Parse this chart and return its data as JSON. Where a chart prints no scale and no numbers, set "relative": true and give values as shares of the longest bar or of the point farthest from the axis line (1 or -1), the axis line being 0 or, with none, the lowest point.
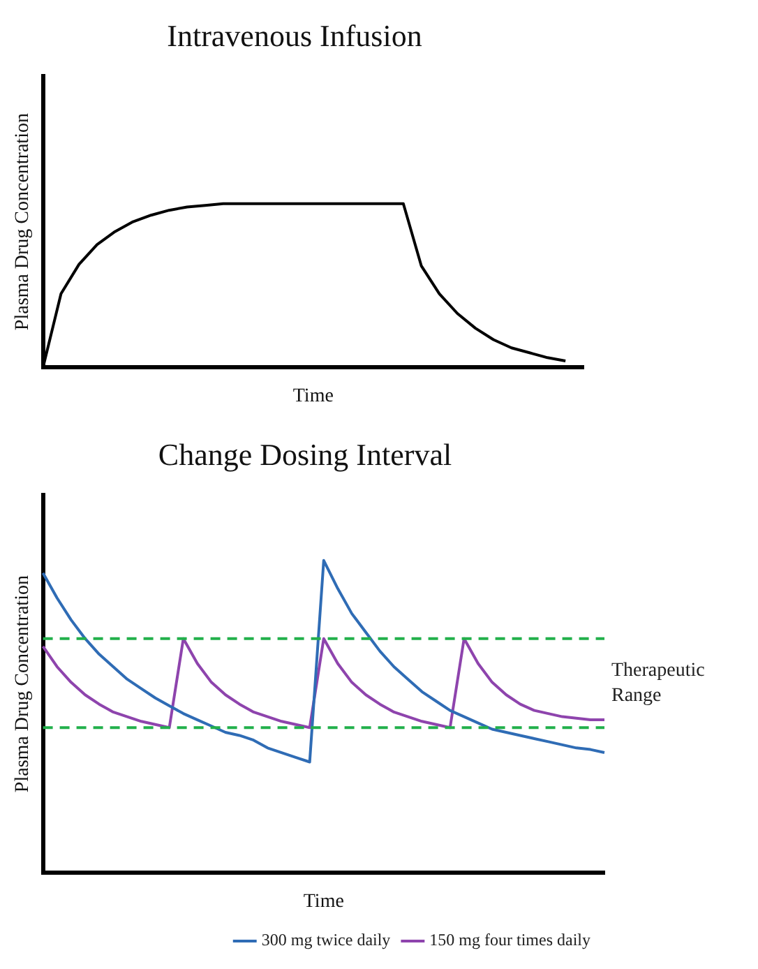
{
  "chart_data": [
    {
      "type": "line",
      "title": "Intravenous Infusion",
      "xlabel": "Time",
      "ylabel": "Plasma Drug Concentration",
      "relative": true,
      "legend": false,
      "marker": "none",
      "line_style": "solid",
      "categories": [
        null,
        null,
        null,
        null,
        null,
        null,
        null,
        null,
        null,
        null,
        null,
        null,
        null,
        null,
        null,
        null,
        null,
        null,
        null,
        null,
        null,
        null,
        null,
        null,
        null,
        null,
        null,
        null,
        null,
        null,
        null
      ],
      "series": [
        {
          "color": "#000000",
          "values": [
            0,
            0.45,
            0.63,
            0.75,
            0.83,
            0.89,
            0.93,
            0.96,
            0.98,
            0.99,
            1,
            1,
            1,
            1,
            1,
            1,
            1,
            1,
            1,
            1,
            1,
            0.62,
            0.45,
            0.33,
            0.24,
            0.17,
            0.12,
            0.09,
            0.06,
            0.04,
            null
          ]
        }
      ]
    },
    {
      "type": "line",
      "title": "Change Dosing Interval",
      "xlabel": "Time",
      "ylabel": "Plasma Drug Concentration",
      "relative": true,
      "legend": "bottom right",
      "marker": "none",
      "line_style": "solid",
      "categories": [
        null,
        null,
        null,
        null,
        null,
        null,
        null,
        null,
        null,
        null,
        null,
        null,
        null,
        null,
        null,
        null,
        null,
        null,
        null,
        null,
        null,
        null,
        null,
        null,
        null,
        null,
        null,
        null,
        null,
        null,
        null,
        null,
        null,
        null,
        null,
        null,
        null,
        null,
        null,
        null,
        null
      ],
      "series": [
        {
          "name": "300 mg twice daily",
          "color": "#2f6cb5",
          "values": [
            0.96,
            0.88,
            0.81,
            0.75,
            0.7,
            0.66,
            0.62,
            0.59,
            0.56,
            0.535,
            0.51,
            0.49,
            0.47,
            0.45,
            0.44,
            0.425,
            0.4,
            0.385,
            0.37,
            0.355,
            1,
            0.91,
            0.83,
            0.77,
            0.71,
            0.66,
            0.62,
            0.58,
            0.55,
            0.52,
            0.5,
            0.48,
            0.46,
            0.45,
            0.44,
            0.43,
            0.42,
            0.41,
            0.4,
            0.395,
            0.385
          ]
        },
        {
          "name": "150 mg four times daily",
          "color": "#8e44ad",
          "values": [
            0.725,
            0.66,
            0.61,
            0.57,
            0.54,
            0.515,
            0.5,
            0.485,
            0.475,
            0.465,
            0.75,
            0.67,
            0.61,
            0.57,
            0.54,
            0.515,
            0.5,
            0.485,
            0.475,
            0.465,
            0.75,
            0.67,
            0.61,
            0.57,
            0.54,
            0.515,
            0.5,
            0.485,
            0.475,
            0.465,
            0.75,
            0.67,
            0.61,
            0.57,
            0.54,
            0.52,
            0.51,
            0.5,
            0.495,
            0.49,
            0.49
          ]
        }
      ],
      "ref_lines": [
        {
          "axis": "y",
          "value": 0.75,
          "color": "#22b04b",
          "line_style": "dashed"
        },
        {
          "axis": "y",
          "value": 0.465,
          "color": "#22b04b",
          "line_style": "dashed"
        }
      ],
      "annotations": [
        "Therapeutic Range"
      ]
    }
  ]
}
